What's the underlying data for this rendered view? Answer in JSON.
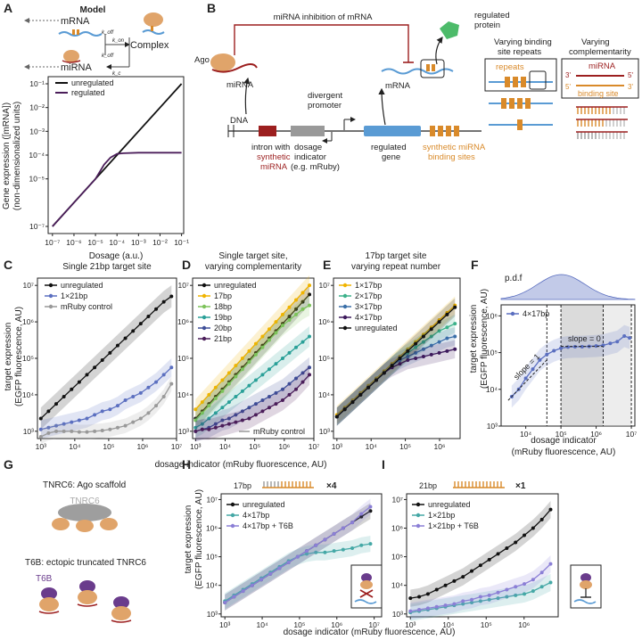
{
  "panel_labels": [
    "A",
    "B",
    "C",
    "D",
    "E",
    "F",
    "G",
    "H",
    "I"
  ],
  "colors": {
    "unregulated": "#111111",
    "regulated": "#4b1e5a",
    "bp21": "#5b6fc0",
    "mruby": "#999999",
    "bp17": "#f0b400",
    "bp18": "#7dc35b",
    "bp19": "#2aa098",
    "bp20": "#3e4e98",
    "r1": "#f0b400",
    "r2": "#3cb18a",
    "r3": "#3a6fa8",
    "r4": "#3d1a5c",
    "f4x17": "#5b6fc0",
    "h4x17": "#45a8a6",
    "t6b": "#8b7fd6",
    "mirna": "#9c1f1f",
    "orange": "#d98a2a",
    "blue_gene": "#5a9bd4",
    "green_protein": "#4dbb6a"
  },
  "panelA": {
    "title": "Model",
    "labels": {
      "mrna_top": "mRNA",
      "mirna_bottom": "miRNA",
      "complex": "Complex",
      "k_off": "k_off",
      "k_on": "k_on",
      "k_c": "k_c",
      "k_off2": "k_off"
    },
    "chart_data": {
      "type": "line",
      "xlabel": "Dosage (a.u.)",
      "ylabel": "Gene expression ([mRNA])\n(non-dimensionalized units)",
      "ylabel_1": "Gene expression ([mRNA])",
      "ylabel_2": "(non-dimensionalized units)",
      "x_log_range": [
        -7,
        -1
      ],
      "y_log_range": [
        -7,
        -1
      ],
      "xticks": [
        "10⁻⁷",
        "10⁻⁶",
        "10⁻⁵",
        "10⁻⁴",
        "10⁻³",
        "10⁻²",
        "10⁻¹"
      ],
      "yticks": [
        "10⁻⁷",
        "10⁻⁵",
        "10⁻⁴",
        "10⁻³",
        "10⁻²",
        "10⁻¹"
      ],
      "series": [
        {
          "name": "unregulated",
          "log_x": [
            -7,
            -6,
            -5,
            -4,
            -3,
            -2,
            -1
          ],
          "log_y": [
            -7,
            -6,
            -5,
            -4,
            -3,
            -2,
            -1
          ]
        },
        {
          "name": "regulated",
          "log_x": [
            -7,
            -6,
            -5,
            -4.6,
            -4.3,
            -4,
            -3.7,
            -3,
            -2,
            -1
          ],
          "log_y": [
            -7,
            -6,
            -5,
            -4.4,
            -4.1,
            -3.95,
            -3.92,
            -3.9,
            -3.9,
            -3.9
          ]
        }
      ]
    }
  },
  "panelB": {
    "labels": {
      "inhibition": "miRNA inhibition of mRNA",
      "regulated_protein": "regulated\nprotein",
      "regulated_protein_1": "regulated",
      "regulated_protein_2": "protein",
      "ago": "Ago",
      "mirna": "miRNA",
      "mrna": "mRNA",
      "divergent_1": "divergent",
      "divergent_2": "promoter",
      "dna": "DNA",
      "intron_1": "intron with",
      "intron_2": "synthetic",
      "intron_3": "miRNA",
      "dosage_1": "dosage",
      "dosage_2": "indicator",
      "dosage_3": "(e.g. mRuby)",
      "gene_1": "regulated",
      "gene_2": "gene",
      "sites_1": "synthetic miRNA",
      "sites_2": "binding sites",
      "vrep_1": "Varying binding",
      "vrep_2": "site repeats",
      "repeats": "repeats",
      "vcomp_1": "Varying",
      "vcomp_2": "complementarity",
      "box_mirna": "miRNA",
      "box_site": "binding site",
      "p3": "3'",
      "p5": "5'",
      "p5b": "5'",
      "p3b": "3'"
    }
  },
  "panelC": {
    "chart_data": {
      "type": "line",
      "title": "Single 21bp target site",
      "xlabel": "",
      "ylabel": "target expression\n(EGFP fluorescence, AU)",
      "x_log_range": [
        3,
        6.9
      ],
      "y_log_range": [
        2.8,
        7.2
      ],
      "series": [
        {
          "name": "unregulated",
          "log_y": [
            3.35,
            3.55,
            3.75,
            3.95,
            4.15,
            4.35,
            4.55,
            4.75,
            4.95,
            5.15,
            5.35,
            5.55,
            5.75,
            5.95,
            6.15,
            6.35,
            6.55,
            6.7
          ]
        },
        {
          "name": "1×21bp",
          "log_y": [
            3.05,
            3.1,
            3.15,
            3.2,
            3.25,
            3.3,
            3.35,
            3.45,
            3.55,
            3.6,
            3.7,
            3.85,
            3.95,
            4.05,
            4.2,
            4.35,
            4.55,
            4.75
          ]
        },
        {
          "name": "mRuby control",
          "log_y": [
            2.85,
            2.95,
            3.0,
            3.0,
            3.0,
            2.98,
            2.98,
            3.0,
            3.02,
            3.05,
            3.1,
            3.15,
            3.25,
            3.35,
            3.5,
            3.7,
            3.95,
            4.3
          ]
        }
      ]
    }
  },
  "panelD": {
    "chart_data": {
      "type": "line",
      "title": "Single target site,\nvarying complementarity",
      "title_1": "Single target site,",
      "title_2": "varying complementarity",
      "x_log_range": [
        3,
        6.9
      ],
      "y_log_range": [
        2.8,
        7.2
      ],
      "annotation": "mRuby control",
      "series": [
        {
          "name": "unregulated",
          "log_y": [
            3.35,
            3.55,
            3.75,
            3.95,
            4.15,
            4.35,
            4.55,
            4.75,
            4.95,
            5.15,
            5.35,
            5.55,
            5.75,
            5.95,
            6.15,
            6.35,
            6.55,
            6.75
          ]
        },
        {
          "name": "17bp",
          "log_y": [
            3.6,
            3.8,
            4.0,
            4.2,
            4.4,
            4.6,
            4.8,
            5.0,
            5.2,
            5.4,
            5.6,
            5.8,
            6.0,
            6.2,
            6.4,
            6.6,
            6.8,
            7.0
          ]
        },
        {
          "name": "18bp",
          "log_y": [
            3.3,
            3.5,
            3.7,
            3.9,
            4.1,
            4.3,
            4.5,
            4.7,
            4.9,
            5.1,
            5.3,
            5.5,
            5.7,
            5.9,
            6.05,
            6.2,
            6.35,
            6.45
          ]
        },
        {
          "name": "19bp",
          "log_y": [
            3.1,
            3.2,
            3.35,
            3.5,
            3.65,
            3.8,
            3.95,
            4.1,
            4.25,
            4.4,
            4.55,
            4.7,
            4.85,
            5.0,
            5.15,
            5.3,
            5.45,
            5.6
          ]
        },
        {
          "name": "20bp",
          "log_y": [
            3.0,
            3.05,
            3.1,
            3.2,
            3.3,
            3.35,
            3.45,
            3.55,
            3.65,
            3.75,
            3.85,
            3.95,
            4.05,
            4.15,
            4.3,
            4.45,
            4.6,
            4.75
          ]
        },
        {
          "name": "21bp",
          "log_y": [
            3.0,
            3.05,
            3.05,
            3.1,
            3.15,
            3.2,
            3.25,
            3.3,
            3.35,
            3.45,
            3.55,
            3.65,
            3.75,
            3.85,
            4.0,
            4.15,
            4.35,
            4.55
          ]
        }
      ]
    }
  },
  "panelE": {
    "chart_data": {
      "type": "line",
      "title": "17bp target site\nvarying repeat number",
      "title_1": "17bp target site",
      "title_2": "varying repeat number",
      "x_log_range": [
        3,
        6.5
      ],
      "y_log_range": [
        2.8,
        7.2
      ],
      "series": [
        {
          "name": "1×17bp",
          "log_y": [
            3.45,
            3.65,
            3.85,
            4.05,
            4.25,
            4.45,
            4.65,
            4.85,
            5.05,
            5.25,
            5.45,
            5.65,
            5.85,
            6.05,
            6.25,
            6.45
          ]
        },
        {
          "name": "2×17bp",
          "log_y": [
            3.4,
            3.6,
            3.8,
            4.0,
            4.2,
            4.4,
            4.6,
            4.8,
            5.0,
            5.15,
            5.3,
            5.45,
            5.6,
            5.75,
            5.85,
            5.95
          ]
        },
        {
          "name": "3×17bp",
          "log_y": [
            3.4,
            3.6,
            3.8,
            4.0,
            4.2,
            4.4,
            4.6,
            4.8,
            4.95,
            5.05,
            5.15,
            5.25,
            5.35,
            5.45,
            5.55,
            5.6
          ]
        },
        {
          "name": "4×17bp",
          "log_y": [
            3.4,
            3.6,
            3.8,
            4.0,
            4.2,
            4.4,
            4.6,
            4.75,
            4.85,
            4.95,
            5.0,
            5.05,
            5.1,
            5.15,
            5.2,
            5.25
          ]
        },
        {
          "name": "unregulated",
          "log_y": [
            3.4,
            3.6,
            3.8,
            4.0,
            4.2,
            4.4,
            4.6,
            4.8,
            5.0,
            5.2,
            5.4,
            5.6,
            5.8,
            6.0,
            6.2,
            6.4
          ]
        }
      ]
    }
  },
  "panelF": {
    "pdf_label": "p.d.f",
    "slope1": "slope = 1",
    "slope0": "slope = 0",
    "xlabel_1": "dosage indicator",
    "xlabel_2": "(mRuby fluorescence, AU)",
    "chart_data": {
      "type": "line",
      "x_log_range": [
        3.3,
        7.1
      ],
      "y_log_range": [
        3,
        6.3
      ],
      "series": [
        {
          "name": "4×17bp",
          "log_x": [
            3.6,
            3.8,
            4.0,
            4.2,
            4.4,
            4.6,
            4.8,
            5.0,
            5.2,
            5.4,
            5.6,
            5.8,
            6.0,
            6.2,
            6.4,
            6.6,
            6.8,
            6.95
          ],
          "log_y": [
            3.8,
            4.0,
            4.3,
            4.55,
            4.8,
            4.95,
            5.05,
            5.12,
            5.15,
            5.16,
            5.16,
            5.17,
            5.18,
            5.2,
            5.25,
            5.3,
            5.45,
            5.4
          ]
        }
      ]
    }
  },
  "panelG": {
    "tnrc6_label": "TNRC6: Ago scaffold",
    "tnrc6": "TNRC6",
    "t6b_label": "T6B: ectopic truncated TNRC6",
    "t6b": "T6B"
  },
  "panelH": {
    "header": "17bp",
    "mult": "×4",
    "chart_data": {
      "type": "line",
      "x_log_range": [
        3,
        7.1
      ],
      "y_log_range": [
        2.9,
        7.2
      ],
      "series": [
        {
          "name": "unregulated",
          "log_y": [
            3.4,
            3.6,
            3.8,
            4.0,
            4.2,
            4.4,
            4.6,
            4.8,
            5.0,
            5.2,
            5.4,
            5.6,
            5.8,
            6.0,
            6.2,
            6.4,
            6.6
          ]
        },
        {
          "name": "4×17bp",
          "log_y": [
            3.45,
            3.65,
            3.85,
            4.05,
            4.25,
            4.45,
            4.65,
            4.85,
            5.0,
            5.1,
            5.15,
            5.15,
            5.2,
            5.25,
            5.3,
            5.4,
            5.45
          ]
        },
        {
          "name": "4×17bp + T6B",
          "log_y": [
            3.4,
            3.6,
            3.8,
            4.0,
            4.2,
            4.4,
            4.6,
            4.8,
            5.0,
            5.2,
            5.4,
            5.6,
            5.8,
            6.0,
            6.2,
            6.5,
            6.75
          ]
        }
      ]
    }
  },
  "panelI": {
    "header": "21bp",
    "mult": "×1",
    "chart_data": {
      "type": "line",
      "x_log_range": [
        3,
        6.8
      ],
      "y_log_range": [
        2.9,
        7.2
      ],
      "series": [
        {
          "name": "unregulated",
          "log_y": [
            3.55,
            3.6,
            3.7,
            3.85,
            4.0,
            4.15,
            4.3,
            4.5,
            4.7,
            4.9,
            5.1,
            5.3,
            5.5,
            5.75,
            6.0,
            6.3,
            6.65
          ]
        },
        {
          "name": "1×21bp",
          "log_y": [
            3.05,
            3.1,
            3.15,
            3.2,
            3.25,
            3.3,
            3.35,
            3.4,
            3.45,
            3.5,
            3.55,
            3.6,
            3.65,
            3.7,
            3.8,
            3.95,
            4.1
          ]
        },
        {
          "name": "1×21bp + T6B",
          "log_y": [
            3.1,
            3.15,
            3.2,
            3.25,
            3.3,
            3.35,
            3.45,
            3.5,
            3.6,
            3.65,
            3.75,
            3.85,
            3.95,
            4.05,
            4.2,
            4.45,
            4.75
          ]
        }
      ]
    }
  },
  "shared": {
    "ylabel_1": "target expression",
    "ylabel_2": "(EGFP fluorescence, AU)",
    "xlabel_row1": "dosage indicator (mRuby fluorescence, AU)",
    "xlabel_row2": "dosage indicator (mRuby fluorescence, AU)",
    "xt": [
      "10³",
      "10⁴",
      "10⁵",
      "10⁶",
      "10⁷"
    ],
    "yt": [
      "10³",
      "10⁴",
      "10⁵",
      "10⁶",
      "10⁷"
    ]
  }
}
